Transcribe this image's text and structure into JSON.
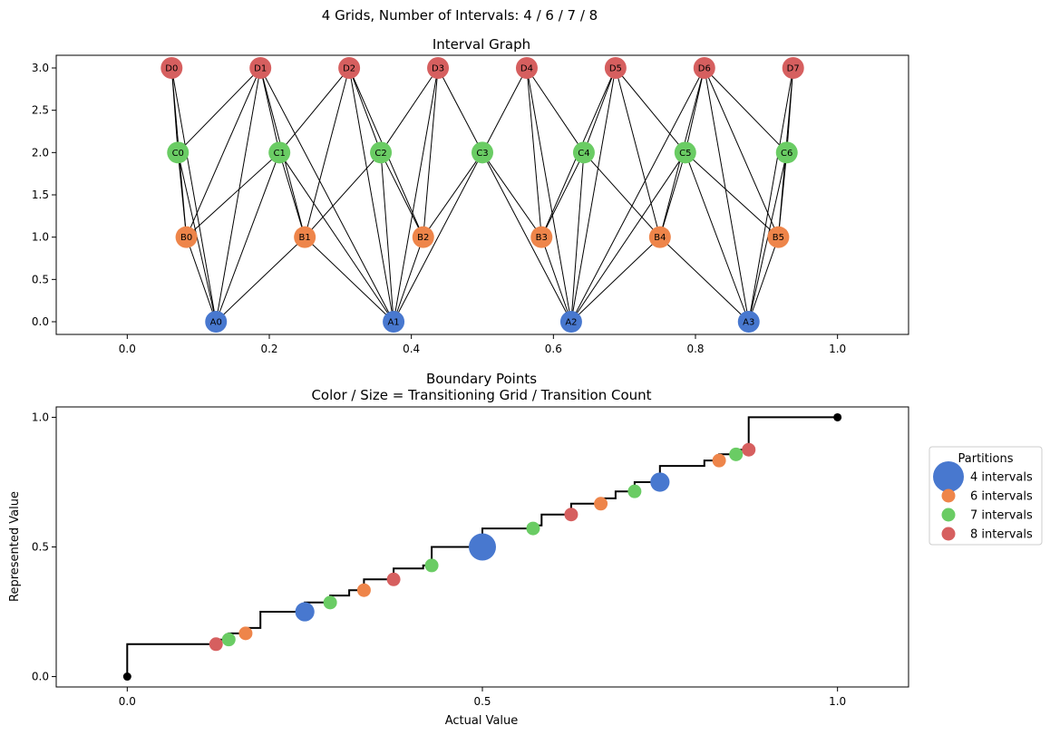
{
  "figure": {
    "suptitle": "4 Grids, Number of Intervals: 4 / 6 / 7 / 8"
  },
  "colors": {
    "A": "#4878cf",
    "B": "#ee854a",
    "C": "#6acc64",
    "D": "#d65f5f",
    "edge": "#000000",
    "endpoint": "#000000"
  },
  "chart_data": [
    {
      "type": "scatter",
      "subtype": "network-graph",
      "title": "Interval Graph",
      "xlabel": "",
      "ylabel": "",
      "xlim": [
        -0.1,
        1.1
      ],
      "ylim": [
        -0.15,
        3.15
      ],
      "xticks": [
        0.0,
        0.2,
        0.4,
        0.6,
        0.8,
        1.0
      ],
      "xtick_labels": [
        "0.0",
        "0.2",
        "0.4",
        "0.6",
        "0.8",
        "1.0"
      ],
      "yticks": [
        0.0,
        0.5,
        1.0,
        1.5,
        2.0,
        2.5,
        3.0
      ],
      "ytick_labels": [
        "0.0",
        "0.5",
        "1.0",
        "1.5",
        "2.0",
        "2.5",
        "3.0"
      ],
      "grid": false,
      "nodes": [
        {
          "id": "A0",
          "x": 0.125,
          "y": 0,
          "group": "A"
        },
        {
          "id": "A1",
          "x": 0.375,
          "y": 0,
          "group": "A"
        },
        {
          "id": "A2",
          "x": 0.625,
          "y": 0,
          "group": "A"
        },
        {
          "id": "A3",
          "x": 0.875,
          "y": 0,
          "group": "A"
        },
        {
          "id": "B0",
          "x": 0.0833,
          "y": 1,
          "group": "B"
        },
        {
          "id": "B1",
          "x": 0.25,
          "y": 1,
          "group": "B"
        },
        {
          "id": "B2",
          "x": 0.4167,
          "y": 1,
          "group": "B"
        },
        {
          "id": "B3",
          "x": 0.5833,
          "y": 1,
          "group": "B"
        },
        {
          "id": "B4",
          "x": 0.75,
          "y": 1,
          "group": "B"
        },
        {
          "id": "B5",
          "x": 0.9167,
          "y": 1,
          "group": "B"
        },
        {
          "id": "C0",
          "x": 0.0714,
          "y": 2,
          "group": "C"
        },
        {
          "id": "C1",
          "x": 0.2143,
          "y": 2,
          "group": "C"
        },
        {
          "id": "C2",
          "x": 0.3571,
          "y": 2,
          "group": "C"
        },
        {
          "id": "C3",
          "x": 0.5,
          "y": 2,
          "group": "C"
        },
        {
          "id": "C4",
          "x": 0.6429,
          "y": 2,
          "group": "C"
        },
        {
          "id": "C5",
          "x": 0.7857,
          "y": 2,
          "group": "C"
        },
        {
          "id": "C6",
          "x": 0.9286,
          "y": 2,
          "group": "C"
        },
        {
          "id": "D0",
          "x": 0.0625,
          "y": 3,
          "group": "D"
        },
        {
          "id": "D1",
          "x": 0.1875,
          "y": 3,
          "group": "D"
        },
        {
          "id": "D2",
          "x": 0.3125,
          "y": 3,
          "group": "D"
        },
        {
          "id": "D3",
          "x": 0.4375,
          "y": 3,
          "group": "D"
        },
        {
          "id": "D4",
          "x": 0.5625,
          "y": 3,
          "group": "D"
        },
        {
          "id": "D5",
          "x": 0.6875,
          "y": 3,
          "group": "D"
        },
        {
          "id": "D6",
          "x": 0.8125,
          "y": 3,
          "group": "D"
        },
        {
          "id": "D7",
          "x": 0.9375,
          "y": 3,
          "group": "D"
        }
      ],
      "edges": [
        [
          "A0",
          "B0"
        ],
        [
          "A0",
          "B1"
        ],
        [
          "A0",
          "C0"
        ],
        [
          "A0",
          "C1"
        ],
        [
          "A0",
          "D0"
        ],
        [
          "A0",
          "D1"
        ],
        [
          "A1",
          "B1"
        ],
        [
          "A1",
          "B2"
        ],
        [
          "A1",
          "C1"
        ],
        [
          "A1",
          "C2"
        ],
        [
          "A1",
          "C3"
        ],
        [
          "A1",
          "D1"
        ],
        [
          "A1",
          "D2"
        ],
        [
          "A1",
          "D3"
        ],
        [
          "A2",
          "B3"
        ],
        [
          "A2",
          "B4"
        ],
        [
          "A2",
          "C3"
        ],
        [
          "A2",
          "C4"
        ],
        [
          "A2",
          "C5"
        ],
        [
          "A2",
          "D4"
        ],
        [
          "A2",
          "D5"
        ],
        [
          "A2",
          "D6"
        ],
        [
          "A3",
          "B4"
        ],
        [
          "A3",
          "B5"
        ],
        [
          "A3",
          "C5"
        ],
        [
          "A3",
          "C6"
        ],
        [
          "A3",
          "D6"
        ],
        [
          "A3",
          "D7"
        ],
        [
          "B0",
          "C0"
        ],
        [
          "B0",
          "C1"
        ],
        [
          "B0",
          "D0"
        ],
        [
          "B0",
          "D1"
        ],
        [
          "B1",
          "C1"
        ],
        [
          "B1",
          "C2"
        ],
        [
          "B1",
          "D1"
        ],
        [
          "B1",
          "D2"
        ],
        [
          "B2",
          "C2"
        ],
        [
          "B2",
          "C3"
        ],
        [
          "B2",
          "D2"
        ],
        [
          "B2",
          "D3"
        ],
        [
          "B3",
          "C4"
        ],
        [
          "B3",
          "C3"
        ],
        [
          "B3",
          "D4"
        ],
        [
          "B3",
          "D5"
        ],
        [
          "B4",
          "C5"
        ],
        [
          "B4",
          "C4"
        ],
        [
          "B4",
          "D5"
        ],
        [
          "B4",
          "D6"
        ],
        [
          "B5",
          "C6"
        ],
        [
          "B5",
          "C5"
        ],
        [
          "B5",
          "D6"
        ],
        [
          "B5",
          "D7"
        ],
        [
          "C0",
          "D0"
        ],
        [
          "C0",
          "D1"
        ],
        [
          "C1",
          "D1"
        ],
        [
          "C1",
          "D2"
        ],
        [
          "C2",
          "D2"
        ],
        [
          "C2",
          "D3"
        ],
        [
          "C3",
          "D3"
        ],
        [
          "C3",
          "D4"
        ],
        [
          "C4",
          "D4"
        ],
        [
          "C4",
          "D5"
        ],
        [
          "C5",
          "D5"
        ],
        [
          "C5",
          "D6"
        ],
        [
          "C6",
          "D6"
        ],
        [
          "C6",
          "D7"
        ]
      ]
    },
    {
      "type": "scatter",
      "subtype": "step-with-markers",
      "title": "Boundary Points",
      "subtitle": "Color / Size = Transitioning Grid / Transition Count",
      "xlabel": "Actual Value",
      "ylabel": "Represented Value",
      "xlim": [
        -0.1,
        1.1
      ],
      "ylim": [
        -0.04,
        1.04
      ],
      "xticks": [
        0.0,
        0.5,
        1.0
      ],
      "xtick_labels": [
        "0.0",
        "0.5",
        "1.0"
      ],
      "yticks": [
        0.0,
        0.5,
        1.0
      ],
      "ytick_labels": [
        "0.0",
        "0.5",
        "1.0"
      ],
      "grid": false,
      "legend": {
        "title": "Partitions",
        "placement": "outside-right",
        "entries": [
          {
            "label": "4 intervals",
            "group": "A"
          },
          {
            "label": "6 intervals",
            "group": "B"
          },
          {
            "label": "7 intervals",
            "group": "C"
          },
          {
            "label": "8 intervals",
            "group": "D"
          }
        ]
      },
      "step_line": {
        "x": [
          0,
          0,
          0.125,
          0.125,
          0.1429,
          0.1429,
          0.1667,
          0.1667,
          0.1875,
          0.1875,
          0.25,
          0.25,
          0.2857,
          0.2857,
          0.3125,
          0.3125,
          0.3333,
          0.3333,
          0.375,
          0.375,
          0.4167,
          0.4167,
          0.4286,
          0.4286,
          0.5,
          0.5,
          0.5714,
          0.5714,
          0.5833,
          0.5833,
          0.625,
          0.625,
          0.6667,
          0.6667,
          0.6875,
          0.6875,
          0.7143,
          0.7143,
          0.75,
          0.75,
          0.8125,
          0.8125,
          0.8333,
          0.8333,
          0.8571,
          0.8571,
          0.875,
          0.875,
          1.0
        ],
        "y": [
          0,
          0.125,
          0.125,
          0.1429,
          0.1429,
          0.1667,
          0.1667,
          0.1875,
          0.1875,
          0.25,
          0.25,
          0.2857,
          0.2857,
          0.3125,
          0.3125,
          0.3333,
          0.3333,
          0.375,
          0.375,
          0.4167,
          0.4167,
          0.4286,
          0.4286,
          0.5,
          0.5,
          0.5714,
          0.5714,
          0.5833,
          0.5833,
          0.625,
          0.625,
          0.6667,
          0.6667,
          0.6875,
          0.6875,
          0.7143,
          0.7143,
          0.75,
          0.75,
          0.8125,
          0.8125,
          0.8333,
          0.8333,
          0.8571,
          0.8571,
          0.875,
          0.875,
          1.0,
          1.0
        ]
      },
      "endpoints": [
        {
          "x": 0.0,
          "y": 0.0
        },
        {
          "x": 1.0,
          "y": 1.0
        }
      ],
      "points": [
        {
          "x": 0.125,
          "y": 0.125,
          "group": "D",
          "count": 1
        },
        {
          "x": 0.1429,
          "y": 0.1429,
          "group": "C",
          "count": 1
        },
        {
          "x": 0.1667,
          "y": 0.1667,
          "group": "B",
          "count": 1
        },
        {
          "x": 0.25,
          "y": 0.25,
          "group": "A",
          "count": 2
        },
        {
          "x": 0.2857,
          "y": 0.2857,
          "group": "C",
          "count": 1
        },
        {
          "x": 0.3333,
          "y": 0.3333,
          "group": "B",
          "count": 1
        },
        {
          "x": 0.375,
          "y": 0.375,
          "group": "D",
          "count": 1
        },
        {
          "x": 0.4286,
          "y": 0.4286,
          "group": "C",
          "count": 1
        },
        {
          "x": 0.5,
          "y": 0.5,
          "group": "A",
          "count": 4
        },
        {
          "x": 0.5714,
          "y": 0.5714,
          "group": "C",
          "count": 1
        },
        {
          "x": 0.625,
          "y": 0.625,
          "group": "D",
          "count": 1
        },
        {
          "x": 0.6667,
          "y": 0.6667,
          "group": "B",
          "count": 1
        },
        {
          "x": 0.7143,
          "y": 0.7143,
          "group": "C",
          "count": 1
        },
        {
          "x": 0.75,
          "y": 0.75,
          "group": "A",
          "count": 2
        },
        {
          "x": 0.8333,
          "y": 0.8333,
          "group": "B",
          "count": 1
        },
        {
          "x": 0.8571,
          "y": 0.8571,
          "group": "C",
          "count": 1
        },
        {
          "x": 0.875,
          "y": 0.875,
          "group": "D",
          "count": 1
        }
      ]
    }
  ]
}
